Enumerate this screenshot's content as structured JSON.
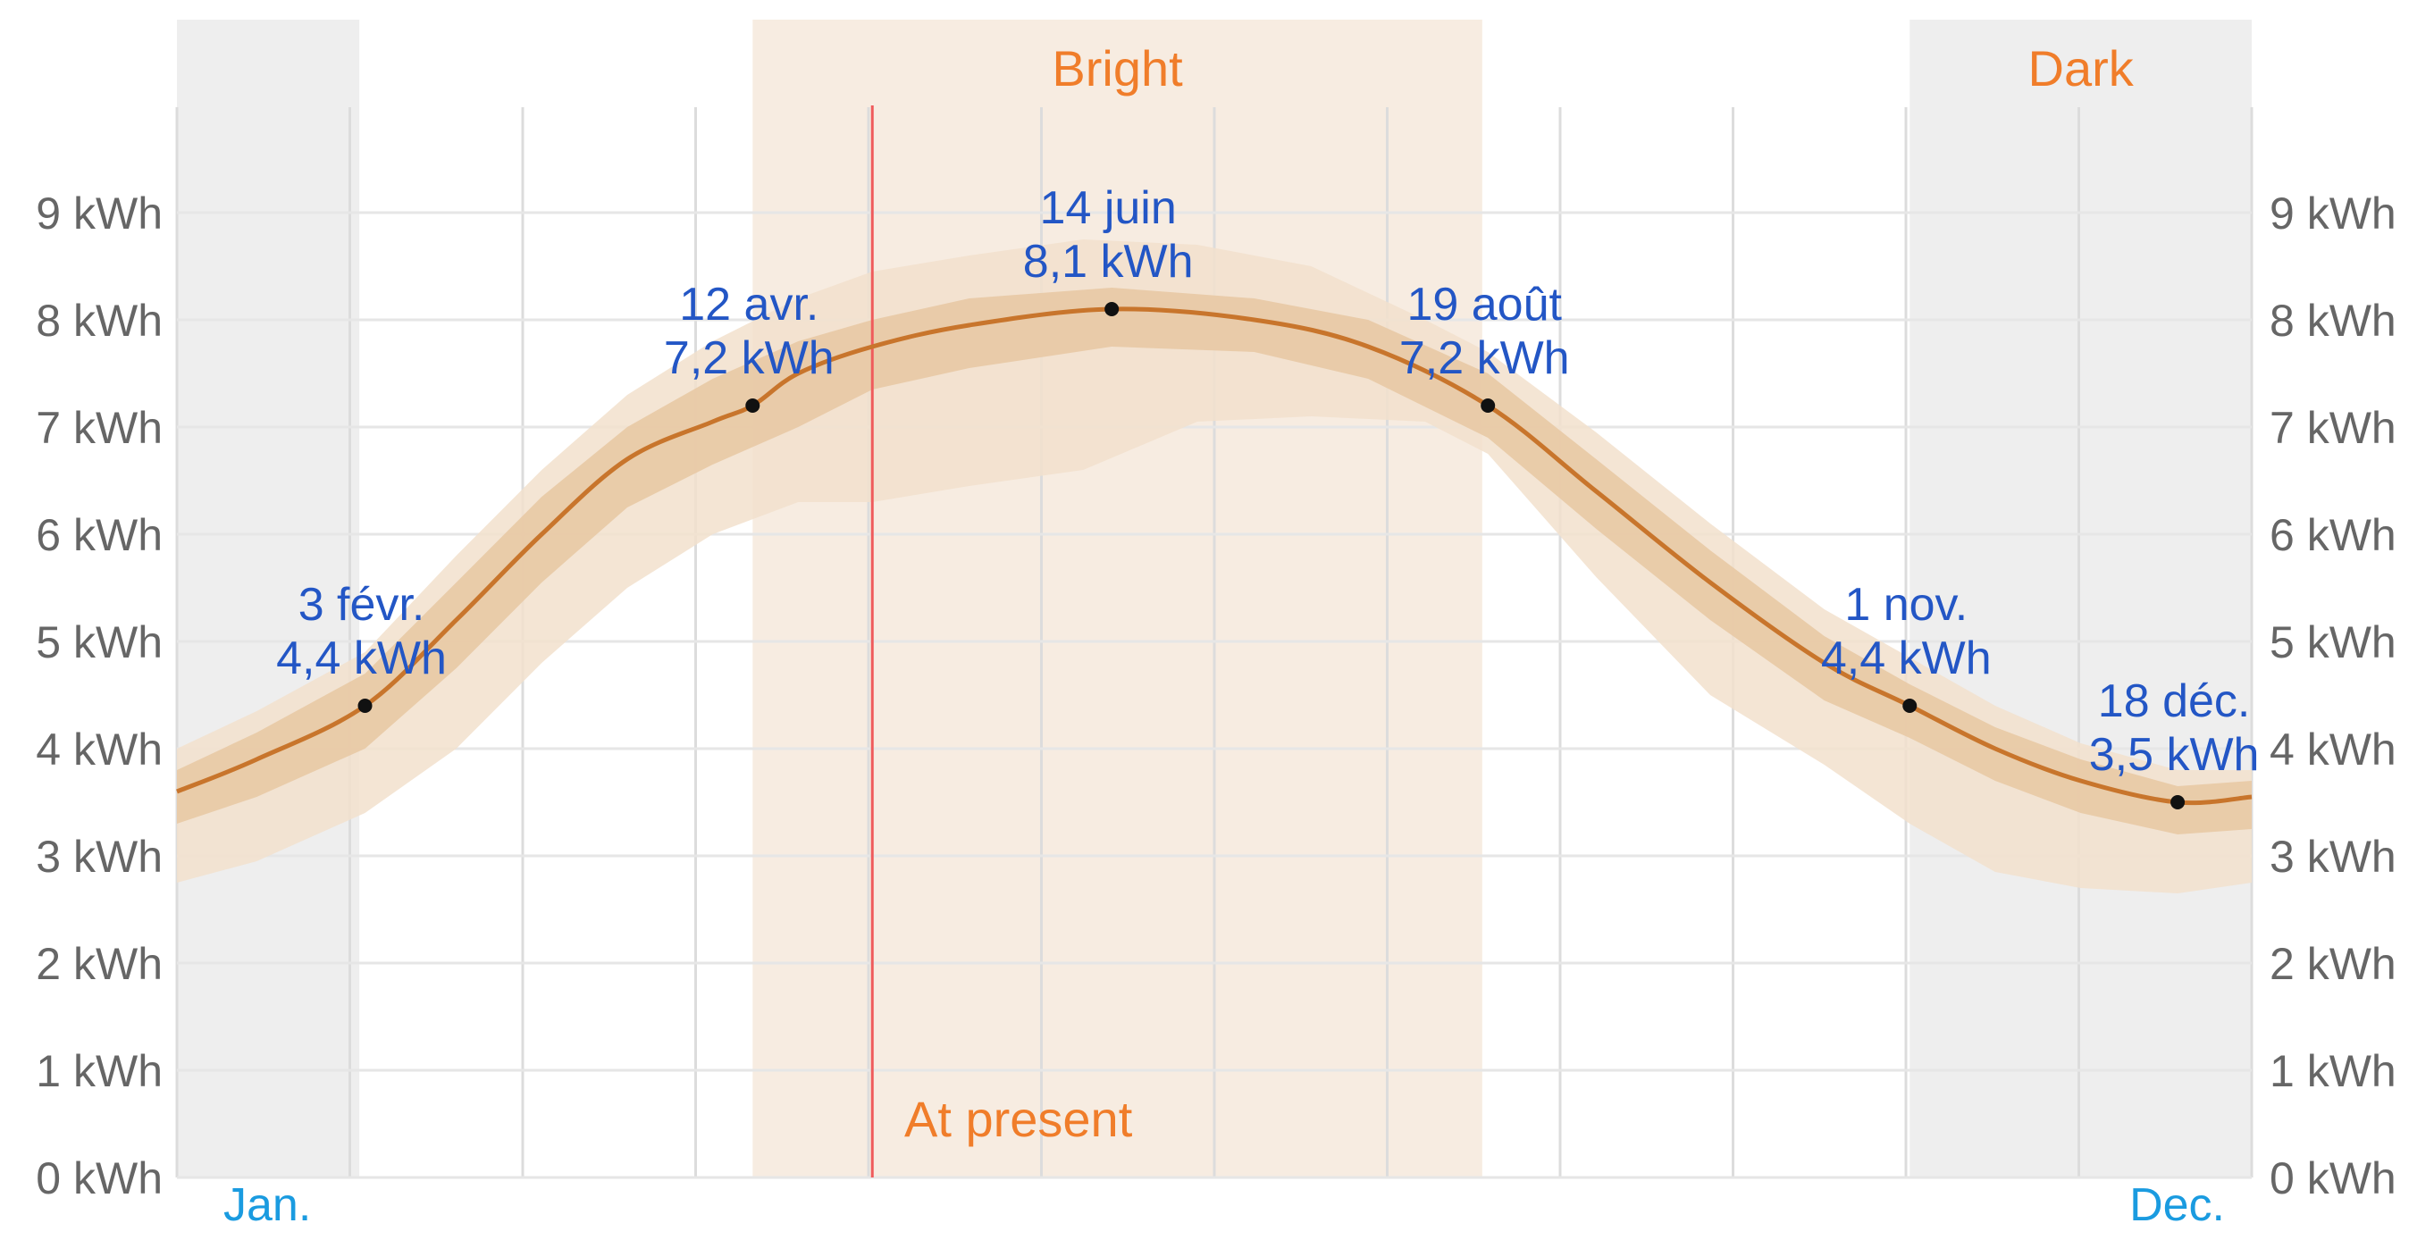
{
  "chart_data": {
    "type": "area",
    "title": "",
    "xlabel": "",
    "ylabel": "",
    "x_range_day": [
      1,
      365
    ],
    "ylim": [
      0,
      10
    ],
    "y_ticks": [
      0,
      1,
      2,
      3,
      4,
      5,
      6,
      7,
      8,
      9
    ],
    "y_tick_labels": [
      "0 kWh",
      "1 kWh",
      "2 kWh",
      "3 kWh",
      "4 kWh",
      "5 kWh",
      "6 kWh",
      "7 kWh",
      "8 kWh",
      "9 kWh"
    ],
    "month_labels": {
      "start": "Jan.",
      "end": "Dec."
    },
    "grid": true,
    "legend": "none",
    "colors": {
      "line": "#c8752c",
      "inner_band": "#e8c9a4",
      "outer_band": "#f2e1cc",
      "bright_region": "#f7ece1",
      "dark_region": "#eeeeee",
      "present_line": "#ef5b5b",
      "annotation": "#2356c5",
      "band_label": "#f07d2a",
      "month_label": "#1a9be0"
    },
    "regions": [
      {
        "label": "",
        "kind": "dark",
        "start_day": 1,
        "end_day": 33
      },
      {
        "label": "Bright",
        "kind": "bright",
        "start_day": 102,
        "end_day": 230
      },
      {
        "label": "Dark",
        "kind": "dark",
        "start_day": 305,
        "end_day": 365
      }
    ],
    "present": {
      "label": "At present",
      "day": 123
    },
    "annotations": [
      {
        "date": "3 févr.",
        "value_label": "4,4 kWh",
        "day": 34,
        "value": 4.4
      },
      {
        "date": "12 avr.",
        "value_label": "7,2 kWh",
        "day": 102,
        "value": 7.2
      },
      {
        "date": "14 juin",
        "value_label": "8,1 kWh",
        "day": 165,
        "value": 8.1
      },
      {
        "date": "19 août",
        "value_label": "7,2 kWh",
        "day": 231,
        "value": 7.2
      },
      {
        "date": "1 nov.",
        "value_label": "4,4 kWh",
        "day": 305,
        "value": 4.4
      },
      {
        "date": "18 déc.",
        "value_label": "3,5 kWh",
        "day": 352,
        "value": 3.5
      }
    ],
    "series": [
      {
        "x": [
          1,
          15,
          34,
          50,
          65,
          80,
          95,
          102,
          110,
          123,
          140,
          165,
          190,
          210,
          231,
          250,
          270,
          290,
          305,
          320,
          335,
          352,
          365
        ],
        "values": [
          3.6,
          3.9,
          4.4,
          5.2,
          6.0,
          6.7,
          7.05,
          7.2,
          7.5,
          7.75,
          7.95,
          8.1,
          8.0,
          7.75,
          7.2,
          6.4,
          5.55,
          4.8,
          4.4,
          4.0,
          3.7,
          3.5,
          3.55
        ]
      }
    ],
    "inner_band": {
      "x": [
        1,
        15,
        34,
        50,
        65,
        80,
        95,
        110,
        123,
        140,
        165,
        190,
        210,
        231,
        250,
        270,
        290,
        305,
        320,
        335,
        352,
        365
      ],
      "upper": [
        3.8,
        4.15,
        4.7,
        5.55,
        6.35,
        7.0,
        7.45,
        7.8,
        8.0,
        8.2,
        8.3,
        8.2,
        8.0,
        7.5,
        6.7,
        5.85,
        5.05,
        4.6,
        4.2,
        3.9,
        3.65,
        3.7
      ],
      "lower": [
        3.3,
        3.55,
        4.0,
        4.75,
        5.55,
        6.25,
        6.65,
        7.0,
        7.35,
        7.55,
        7.75,
        7.7,
        7.45,
        6.9,
        6.05,
        5.2,
        4.45,
        4.1,
        3.7,
        3.4,
        3.2,
        3.25
      ]
    },
    "outer_band": {
      "x": [
        1,
        15,
        34,
        50,
        65,
        80,
        95,
        110,
        123,
        140,
        160,
        180,
        200,
        220,
        231,
        250,
        270,
        290,
        305,
        320,
        335,
        352,
        365
      ],
      "upper": [
        4.0,
        4.35,
        4.9,
        5.8,
        6.6,
        7.3,
        7.8,
        8.2,
        8.45,
        8.6,
        8.75,
        8.7,
        8.5,
        8.0,
        7.7,
        6.95,
        6.1,
        5.3,
        4.85,
        4.4,
        4.05,
        3.8,
        3.8
      ],
      "lower": [
        2.75,
        2.95,
        3.4,
        4.0,
        4.8,
        5.5,
        6.0,
        6.3,
        6.3,
        6.45,
        6.6,
        7.05,
        7.1,
        7.05,
        6.75,
        5.6,
        4.5,
        3.85,
        3.3,
        2.85,
        2.7,
        2.65,
        2.75
      ]
    }
  }
}
